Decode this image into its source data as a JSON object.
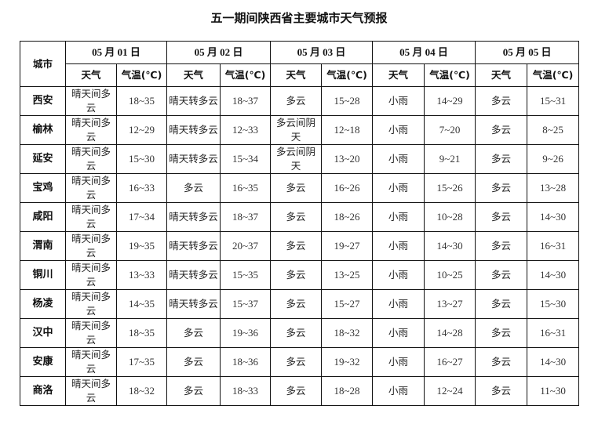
{
  "title": "五一期间陕西省主要城市天气预报",
  "headers": {
    "city": "城市",
    "dates": [
      "05 月 01 日",
      "05 月 02 日",
      "05 月 03 日",
      "05 月 04 日",
      "05 月 05 日"
    ],
    "weather": "天气",
    "temp": "气温(℃)"
  },
  "rows": [
    {
      "city": "西安",
      "days": [
        [
          "晴天间多云",
          "18~35"
        ],
        [
          "晴天转多云",
          "18~37"
        ],
        [
          "多云",
          "15~28"
        ],
        [
          "小雨",
          "14~29"
        ],
        [
          "多云",
          "15~31"
        ]
      ]
    },
    {
      "city": "榆林",
      "days": [
        [
          "晴天间多云",
          "12~29"
        ],
        [
          "晴天转多云",
          "12~33"
        ],
        [
          "多云间阴天",
          "12~18"
        ],
        [
          "小雨",
          "7~20"
        ],
        [
          "多云",
          "8~25"
        ]
      ]
    },
    {
      "city": "延安",
      "days": [
        [
          "晴天间多云",
          "15~30"
        ],
        [
          "晴天转多云",
          "15~34"
        ],
        [
          "多云间阴天",
          "13~20"
        ],
        [
          "小雨",
          "9~21"
        ],
        [
          "多云",
          "9~26"
        ]
      ]
    },
    {
      "city": "宝鸡",
      "days": [
        [
          "晴天间多云",
          "16~33"
        ],
        [
          "多云",
          "16~35"
        ],
        [
          "多云",
          "16~26"
        ],
        [
          "小雨",
          "15~26"
        ],
        [
          "多云",
          "13~28"
        ]
      ]
    },
    {
      "city": "咸阳",
      "days": [
        [
          "晴天间多云",
          "17~34"
        ],
        [
          "晴天转多云",
          "18~37"
        ],
        [
          "多云",
          "18~26"
        ],
        [
          "小雨",
          "10~28"
        ],
        [
          "多云",
          "14~30"
        ]
      ]
    },
    {
      "city": "渭南",
      "days": [
        [
          "晴天间多云",
          "19~35"
        ],
        [
          "晴天转多云",
          "20~37"
        ],
        [
          "多云",
          "19~27"
        ],
        [
          "小雨",
          "14~30"
        ],
        [
          "多云",
          "16~31"
        ]
      ]
    },
    {
      "city": "铜川",
      "days": [
        [
          "晴天间多云",
          "13~33"
        ],
        [
          "晴天转多云",
          "15~35"
        ],
        [
          "多云",
          "13~25"
        ],
        [
          "小雨",
          "10~25"
        ],
        [
          "多云",
          "14~30"
        ]
      ]
    },
    {
      "city": "杨凌",
      "days": [
        [
          "晴天间多云",
          "14~35"
        ],
        [
          "晴天转多云",
          "15~37"
        ],
        [
          "多云",
          "15~27"
        ],
        [
          "小雨",
          "13~27"
        ],
        [
          "多云",
          "15~30"
        ]
      ]
    },
    {
      "city": "汉中",
      "days": [
        [
          "晴天间多云",
          "18~35"
        ],
        [
          "多云",
          "19~36"
        ],
        [
          "多云",
          "18~32"
        ],
        [
          "小雨",
          "14~28"
        ],
        [
          "多云",
          "16~31"
        ]
      ]
    },
    {
      "city": "安康",
      "days": [
        [
          "晴天间多云",
          "17~35"
        ],
        [
          "多云",
          "18~36"
        ],
        [
          "多云",
          "19~32"
        ],
        [
          "小雨",
          "16~27"
        ],
        [
          "多云",
          "14~30"
        ]
      ]
    },
    {
      "city": "商洛",
      "days": [
        [
          "晴天间多云",
          "18~32"
        ],
        [
          "多云",
          "18~33"
        ],
        [
          "多云",
          "18~28"
        ],
        [
          "小雨",
          "12~24"
        ],
        [
          "多云",
          "11~30"
        ]
      ]
    }
  ]
}
